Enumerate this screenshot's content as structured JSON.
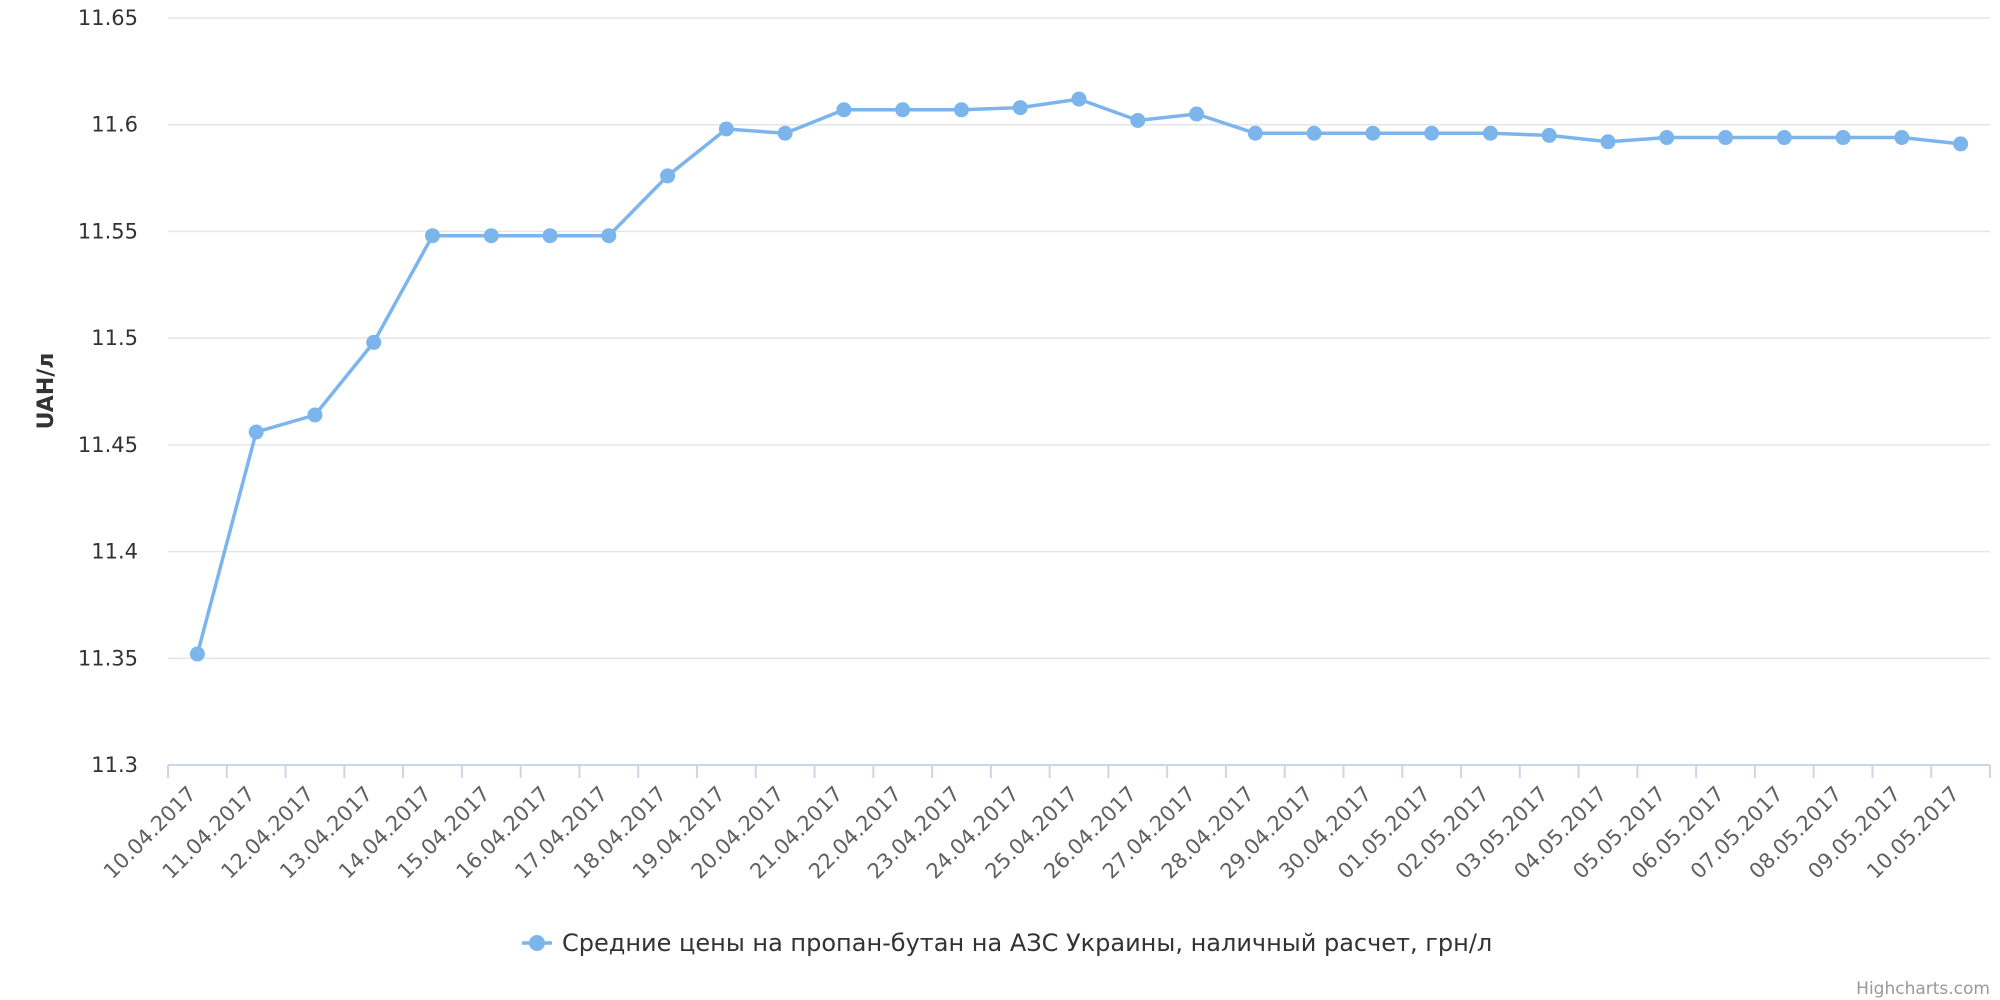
{
  "chart_data": {
    "type": "line",
    "title": "",
    "xlabel": "",
    "ylabel": "UAH/л",
    "ylim": [
      11.3,
      11.65
    ],
    "yticks": [
      "11.3",
      "11.35",
      "11.4",
      "11.45",
      "11.5",
      "11.55",
      "11.6",
      "11.65"
    ],
    "grid": true,
    "legend_position": "bottom-center",
    "categories": [
      "10.04.2017",
      "11.04.2017",
      "12.04.2017",
      "13.04.2017",
      "14.04.2017",
      "15.04.2017",
      "16.04.2017",
      "17.04.2017",
      "18.04.2017",
      "19.04.2017",
      "20.04.2017",
      "21.04.2017",
      "22.04.2017",
      "23.04.2017",
      "24.04.2017",
      "25.04.2017",
      "26.04.2017",
      "27.04.2017",
      "28.04.2017",
      "29.04.2017",
      "30.04.2017",
      "01.05.2017",
      "02.05.2017",
      "03.05.2017",
      "04.05.2017",
      "05.05.2017",
      "06.05.2017",
      "07.05.2017",
      "08.05.2017",
      "09.05.2017",
      "10.05.2017"
    ],
    "series": [
      {
        "name": "Средние цены на пропан-бутан на АЗС Украины, наличный расчет, грн/л",
        "color": "#7cb5ec",
        "values": [
          11.352,
          11.456,
          11.464,
          11.498,
          11.548,
          11.548,
          11.548,
          11.548,
          11.576,
          11.598,
          11.596,
          11.607,
          11.607,
          11.607,
          11.608,
          11.612,
          11.602,
          11.605,
          11.596,
          11.596,
          11.596,
          11.596,
          11.596,
          11.595,
          11.592,
          11.594,
          11.594,
          11.594,
          11.594,
          11.594,
          11.591
        ]
      }
    ]
  },
  "credits": "Highcharts.com",
  "colors": {
    "grid": "#e6e6e6",
    "axis": "#ccd6eb",
    "series": "#7cb5ec"
  }
}
